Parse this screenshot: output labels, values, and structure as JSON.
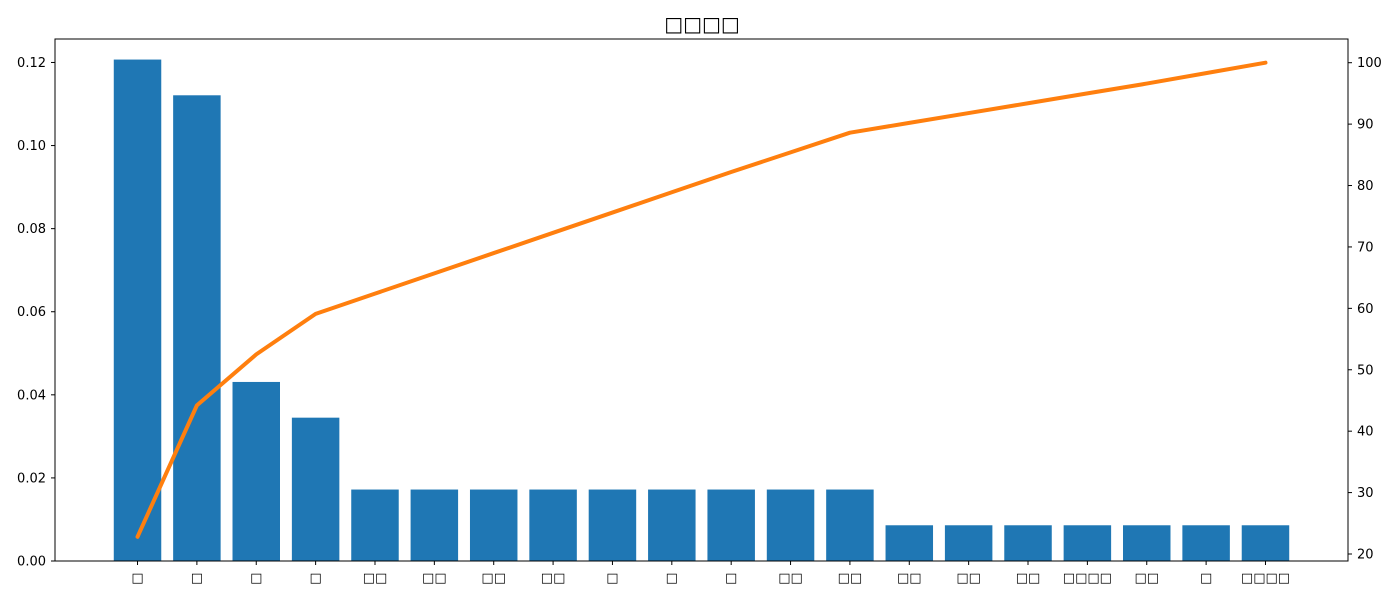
{
  "chart_data": {
    "type": "bar",
    "title": "□□□□",
    "categories": [
      "□",
      "□",
      "□",
      "□",
      "□□",
      "□□",
      "□□",
      "□□",
      "□",
      "□",
      "□",
      "□□",
      "□□",
      "□□",
      "□□",
      "□□",
      "□□□□",
      "□□",
      "□",
      "□□□□"
    ],
    "series": [
      {
        "type": "bar",
        "axis": "left",
        "color": "#1f77b4",
        "values": [
          0.1207,
          0.1121,
          0.0431,
          0.0345,
          0.0172,
          0.0172,
          0.0172,
          0.0172,
          0.0172,
          0.0172,
          0.0172,
          0.0172,
          0.0172,
          0.0086,
          0.0086,
          0.0086,
          0.0086,
          0.0086,
          0.0086,
          0.0086
        ]
      },
      {
        "type": "line",
        "axis": "right",
        "color": "#ff7f0e",
        "values": [
          22.8,
          44.2,
          52.5,
          59.1,
          62.4,
          65.7,
          69.0,
          72.3,
          75.6,
          78.9,
          82.2,
          85.4,
          88.6,
          90.2,
          91.8,
          93.4,
          95.0,
          96.6,
          98.3,
          100.0
        ]
      }
    ],
    "y_left": {
      "ylim": [
        0,
        0.12565
      ],
      "ticks": [
        "0.00",
        "0.02",
        "0.04",
        "0.06",
        "0.08",
        "0.10",
        "0.12"
      ],
      "tick_values": [
        0,
        0.02,
        0.04,
        0.06,
        0.08,
        0.1,
        0.12
      ]
    },
    "y_right": {
      "ylim": [
        18.86,
        103.86
      ],
      "ticks": [
        "20",
        "30",
        "40",
        "50",
        "60",
        "70",
        "80",
        "90",
        "100"
      ],
      "tick_values": [
        20,
        30,
        40,
        50,
        60,
        70,
        80,
        90,
        100
      ]
    },
    "grid": false,
    "legend": "none"
  }
}
